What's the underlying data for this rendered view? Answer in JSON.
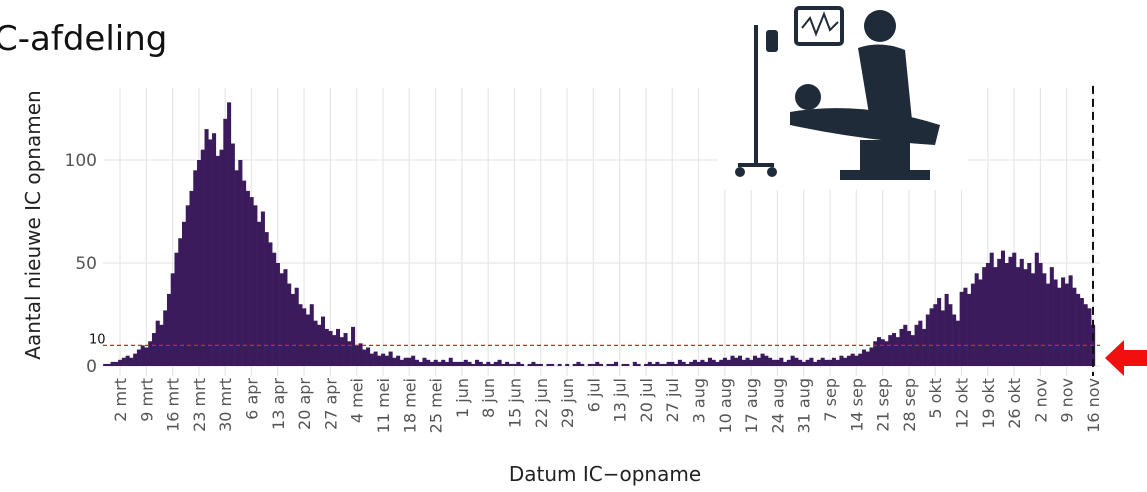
{
  "chart_data": {
    "type": "bar",
    "title": "C-afdeling",
    "y_label": "Aantal nieuwe IC opnamen",
    "x_label": "Datum IC−opname",
    "color": "#3b1b5c",
    "ylim": [
      0,
      135
    ],
    "yticks": [
      0,
      50,
      100
    ],
    "grid": true,
    "hline": 10,
    "hline_color": "#e02020",
    "categories": [
      null,
      null,
      null,
      null,
      "2 mrt",
      null,
      null,
      null,
      null,
      null,
      null,
      "9 mrt",
      null,
      null,
      null,
      null,
      null,
      null,
      "16 mrt",
      null,
      null,
      null,
      null,
      null,
      null,
      "23 mrt",
      null,
      null,
      null,
      null,
      null,
      null,
      "30 mrt",
      null,
      null,
      null,
      null,
      null,
      null,
      "6 apr",
      null,
      null,
      null,
      null,
      null,
      null,
      "13 apr",
      null,
      null,
      null,
      null,
      null,
      null,
      "20 apr",
      null,
      null,
      null,
      null,
      null,
      null,
      "27 apr",
      null,
      null,
      null,
      null,
      null,
      null,
      "4 mei",
      null,
      null,
      null,
      null,
      null,
      null,
      "11 mei",
      null,
      null,
      null,
      null,
      null,
      null,
      "18 mei",
      null,
      null,
      null,
      null,
      null,
      null,
      "25 mei",
      null,
      null,
      null,
      null,
      null,
      null,
      "1 jun",
      null,
      null,
      null,
      null,
      null,
      null,
      "8 jun",
      null,
      null,
      null,
      null,
      null,
      null,
      "15 jun",
      null,
      null,
      null,
      null,
      null,
      null,
      "22 jun",
      null,
      null,
      null,
      null,
      null,
      null,
      "29 jun",
      null,
      null,
      null,
      null,
      null,
      null,
      "6 jul",
      null,
      null,
      null,
      null,
      null,
      null,
      "13 jul",
      null,
      null,
      null,
      null,
      null,
      null,
      "20 jul",
      null,
      null,
      null,
      null,
      null,
      null,
      "27 jul",
      null,
      null,
      null,
      null,
      null,
      null,
      "3 aug",
      null,
      null,
      null,
      null,
      null,
      null,
      "10 aug",
      null,
      null,
      null,
      null,
      null,
      null,
      "17 aug",
      null,
      null,
      null,
      null,
      null,
      null,
      "24 aug",
      null,
      null,
      null,
      null,
      null,
      null,
      "31 aug",
      null,
      null,
      null,
      null,
      null,
      null,
      "7 sep",
      null,
      null,
      null,
      null,
      null,
      null,
      "14 sep",
      null,
      null,
      null,
      null,
      null,
      null,
      "21 sep",
      null,
      null,
      null,
      null,
      null,
      null,
      "28 sep",
      null,
      null,
      null,
      null,
      null,
      null,
      "5 okt",
      null,
      null,
      null,
      null,
      null,
      null,
      "12 okt",
      null,
      null,
      null,
      null,
      null,
      null,
      "19 okt",
      null,
      null,
      null,
      null,
      null,
      null,
      "26 okt",
      null,
      null,
      null,
      null,
      null,
      null,
      "2 nov",
      null,
      null,
      null,
      null,
      null,
      null,
      "9 nov",
      null,
      null,
      null,
      null,
      null,
      null,
      "16 nov"
    ],
    "values": [
      1,
      1,
      2,
      2,
      3,
      4,
      5,
      4,
      6,
      8,
      10,
      9,
      12,
      16,
      22,
      20,
      27,
      35,
      45,
      55,
      62,
      70,
      78,
      85,
      95,
      100,
      105,
      115,
      110,
      113,
      102,
      105,
      120,
      128,
      108,
      95,
      100,
      90,
      85,
      82,
      78,
      70,
      75,
      65,
      60,
      55,
      50,
      45,
      47,
      40,
      35,
      38,
      30,
      28,
      25,
      30,
      22,
      20,
      24,
      18,
      17,
      15,
      18,
      14,
      16,
      12,
      19,
      10,
      11,
      8,
      9,
      6,
      7,
      5,
      6,
      5,
      7,
      4,
      5,
      3,
      4,
      4,
      5,
      3,
      2,
      4,
      3,
      2,
      3,
      2,
      3,
      2,
      4,
      2,
      2,
      2,
      3,
      2,
      1,
      3,
      2,
      1,
      2,
      1,
      2,
      3,
      1,
      2,
      1,
      1,
      2,
      1,
      0,
      1,
      2,
      1,
      1,
      0,
      1,
      1,
      0,
      1,
      0,
      1,
      0,
      1,
      2,
      1,
      0,
      1,
      1,
      2,
      1,
      0,
      1,
      1,
      2,
      0,
      1,
      1,
      0,
      2,
      1,
      0,
      1,
      2,
      1,
      2,
      1,
      1,
      2,
      2,
      1,
      3,
      2,
      1,
      2,
      3,
      2,
      3,
      2,
      4,
      3,
      2,
      3,
      4,
      3,
      5,
      4,
      5,
      3,
      4,
      3,
      5,
      4,
      6,
      5,
      4,
      3,
      3,
      4,
      2,
      3,
      5,
      4,
      3,
      2,
      3,
      4,
      2,
      3,
      4,
      3,
      3,
      4,
      3,
      5,
      4,
      5,
      6,
      5,
      6,
      8,
      7,
      9,
      12,
      14,
      13,
      12,
      15,
      16,
      14,
      18,
      20,
      17,
      15,
      20,
      22,
      18,
      25,
      28,
      30,
      33,
      27,
      35,
      30,
      25,
      22,
      36,
      38,
      35,
      40,
      45,
      42,
      48,
      50,
      55,
      48,
      52,
      56,
      50,
      53,
      55,
      48,
      52,
      47,
      50,
      45,
      55,
      50,
      45,
      40,
      48,
      42,
      38,
      43,
      40,
      44,
      38,
      35,
      33,
      30,
      28,
      20
    ]
  }
}
